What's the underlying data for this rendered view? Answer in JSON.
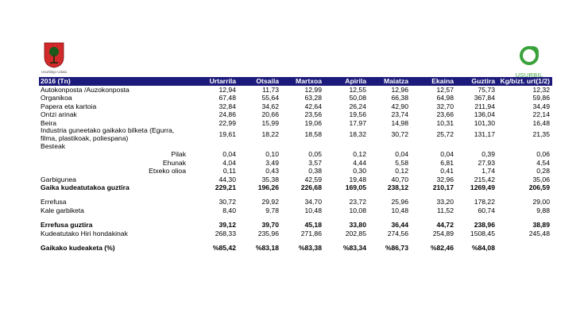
{
  "logos": {
    "left_caption": "Usurbilgo Udala",
    "right_caption": "USURBIL"
  },
  "table": {
    "headers": [
      "2016 (Tn)",
      "Urtarrila",
      "Otsaila",
      "Martxoa",
      "Apirila",
      "Maiatza",
      "Ekaina",
      "Guztira",
      "Kg/bizt. urt(1/2)"
    ],
    "rows": [
      {
        "label": "Autokonposta /Auzokonposta",
        "values": [
          "12,94",
          "11,73",
          "12,99",
          "12,55",
          "12,96",
          "12,57",
          "75,73",
          "12,32"
        ]
      },
      {
        "label": "Organikoa",
        "values": [
          "67,48",
          "55,64",
          "63,28",
          "50,08",
          "66,38",
          "64,98",
          "367,84",
          "59,86"
        ]
      },
      {
        "label": "Papera eta kartoia",
        "values": [
          "32,84",
          "34,62",
          "42,64",
          "26,24",
          "42,90",
          "32,70",
          "211,94",
          "34,49"
        ]
      },
      {
        "label": "Ontzi arinak",
        "values": [
          "24,86",
          "20,66",
          "23,56",
          "19,56",
          "23,74",
          "23,66",
          "136,04",
          "22,14"
        ]
      },
      {
        "label": "Beira",
        "values": [
          "22,99",
          "15,99",
          "19,06",
          "17,97",
          "14,98",
          "10,31",
          "101,30",
          "16,48"
        ]
      },
      {
        "label": "Industria guneetako gaikako bilketa (Egurra, filma, plastikoak, poliespana)",
        "values": [
          "19,61",
          "18,22",
          "18,58",
          "18,32",
          "30,72",
          "25,72",
          "131,17",
          "21,35"
        ]
      },
      {
        "label": "Besteak",
        "values": [
          "",
          "",
          "",
          "",
          "",
          "",
          "",
          ""
        ]
      },
      {
        "label": "Pilak",
        "values": [
          "0,04",
          "0,10",
          "0,05",
          "0,12",
          "0,04",
          "0,04",
          "0,39",
          "0,06"
        ]
      },
      {
        "label": "Ehunak",
        "values": [
          "4,04",
          "3,49",
          "3,57",
          "4,44",
          "5,58",
          "6,81",
          "27,93",
          "4,54"
        ]
      },
      {
        "label": "Etxeko olioa",
        "values": [
          "0,11",
          "0,43",
          "0,38",
          "0,30",
          "0,12",
          "0,41",
          "1,74",
          "0,28"
        ]
      },
      {
        "label": "Garbigunea",
        "values": [
          "44,30",
          "35,38",
          "42,59",
          "19,48",
          "40,70",
          "32,96",
          "215,42",
          "35,06"
        ]
      },
      {
        "label": "Gaika kudeatutakoa guztira",
        "values": [
          "229,21",
          "196,26",
          "226,68",
          "169,05",
          "238,12",
          "210,17",
          "1269,49",
          "206,59"
        ]
      },
      {
        "label": "Errefusa",
        "values": [
          "30,72",
          "29,92",
          "34,70",
          "23,72",
          "25,96",
          "33,20",
          "178,22",
          "29,00"
        ]
      },
      {
        "label": "Kale garbiketa",
        "values": [
          "8,40",
          "9,78",
          "10,48",
          "10,08",
          "10,48",
          "11,52",
          "60,74",
          "9,88"
        ]
      },
      {
        "label": "Errefusa guztira",
        "values": [
          "39,12",
          "39,70",
          "45,18",
          "33,80",
          "36,44",
          "44,72",
          "238,96",
          "38,89"
        ]
      },
      {
        "label": "Kudeatutako  Hiri hondakinak",
        "values": [
          "268,33",
          "235,96",
          "271,86",
          "202,85",
          "274,56",
          "254,89",
          "1508,45",
          "245,48"
        ]
      },
      {
        "label": "Gaikako kudeaketa (%)",
        "values": [
          "%85,42",
          "%83,18",
          "%83,38",
          "%83,34",
          "%86,73",
          "%82,46",
          "%84,08",
          ""
        ]
      }
    ]
  }
}
